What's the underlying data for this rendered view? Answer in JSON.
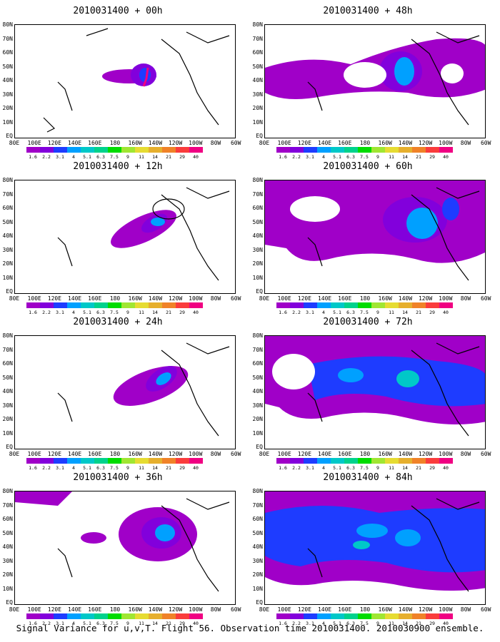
{
  "lat_labels": [
    "80N",
    "70N",
    "60N",
    "50N",
    "40N",
    "30N",
    "20N",
    "10N",
    "EQ"
  ],
  "lon_labels": [
    "80E",
    "100E",
    "120E",
    "140E",
    "160E",
    "180",
    "160W",
    "140W",
    "120W",
    "100W",
    "80W",
    "60W"
  ],
  "colorbar": {
    "labels": [
      "1.6",
      "2.2",
      "3.1",
      "4",
      "5.1",
      "6.3",
      "7.5",
      "9",
      "11",
      "14",
      "21",
      "29",
      "40"
    ],
    "colors": [
      "#a000c8",
      "#8200dc",
      "#1e3cff",
      "#00a0ff",
      "#00c8c8",
      "#00d28c",
      "#00dc00",
      "#a0e632",
      "#e6dc32",
      "#e6af2d",
      "#f08228",
      "#fa3c3c",
      "#f00082"
    ]
  },
  "panels": [
    {
      "title": "2010031400 + 00h"
    },
    {
      "title": "2010031400 + 48h"
    },
    {
      "title": "2010031400 + 12h"
    },
    {
      "title": "2010031400 + 60h"
    },
    {
      "title": "2010031400 + 24h"
    },
    {
      "title": "2010031400 + 72h"
    },
    {
      "title": "2010031400 + 36h"
    },
    {
      "title": "2010031400 + 84h"
    }
  ],
  "caption": "Signal Variance for u,v,T. Flight 56. Observation time 2010031400. 2010030900 ensemble."
}
